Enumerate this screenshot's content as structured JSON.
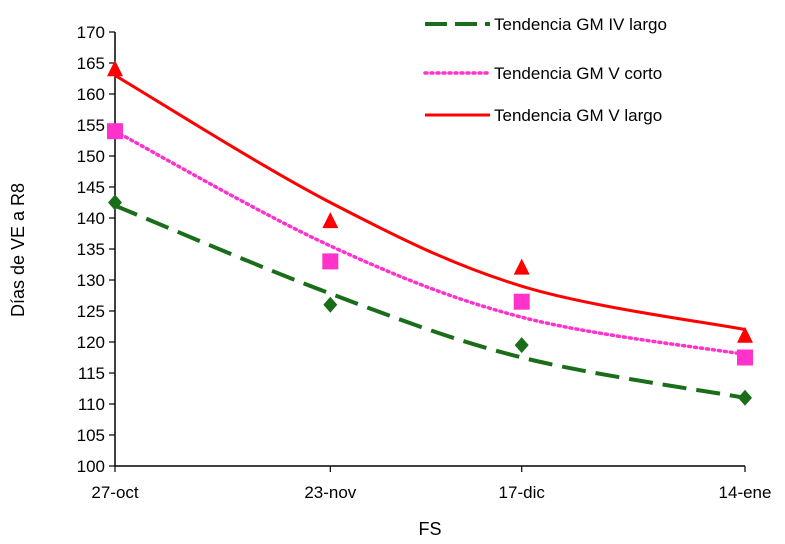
{
  "chart_data": {
    "type": "scatter",
    "title": "",
    "xlabel": "FS",
    "ylabel": "Días de VE a R8",
    "categories": [
      "27-oct",
      "23-nov",
      "17-dic",
      "14-ene"
    ],
    "x_days_from_first": [
      0,
      27,
      51,
      79
    ],
    "ylim": [
      100,
      170
    ],
    "yticks": [
      100,
      105,
      110,
      115,
      120,
      125,
      130,
      135,
      140,
      145,
      150,
      155,
      160,
      165,
      170
    ],
    "grid": false,
    "legend_position": "top-right",
    "series": [
      {
        "name": "Tendencia GM IV largo",
        "marker": "diamond",
        "color": "#1a6e1a",
        "line_style": "dashed",
        "values": [
          142.5,
          126,
          119.5,
          111
        ],
        "trend": [
          142,
          127.8,
          117.5,
          111
        ]
      },
      {
        "name": "Tendencia GM V corto",
        "marker": "square",
        "color": "#ff33cc",
        "line_style": "dotted",
        "values": [
          154,
          133,
          126.5,
          117.5
        ],
        "trend": [
          154,
          135.5,
          124,
          118
        ]
      },
      {
        "name": "Tendencia GM V largo",
        "marker": "triangle",
        "color": "#ff0000",
        "line_style": "solid",
        "values": [
          164,
          139.5,
          132,
          121
        ],
        "trend": [
          163,
          142.5,
          129,
          122
        ]
      }
    ]
  }
}
